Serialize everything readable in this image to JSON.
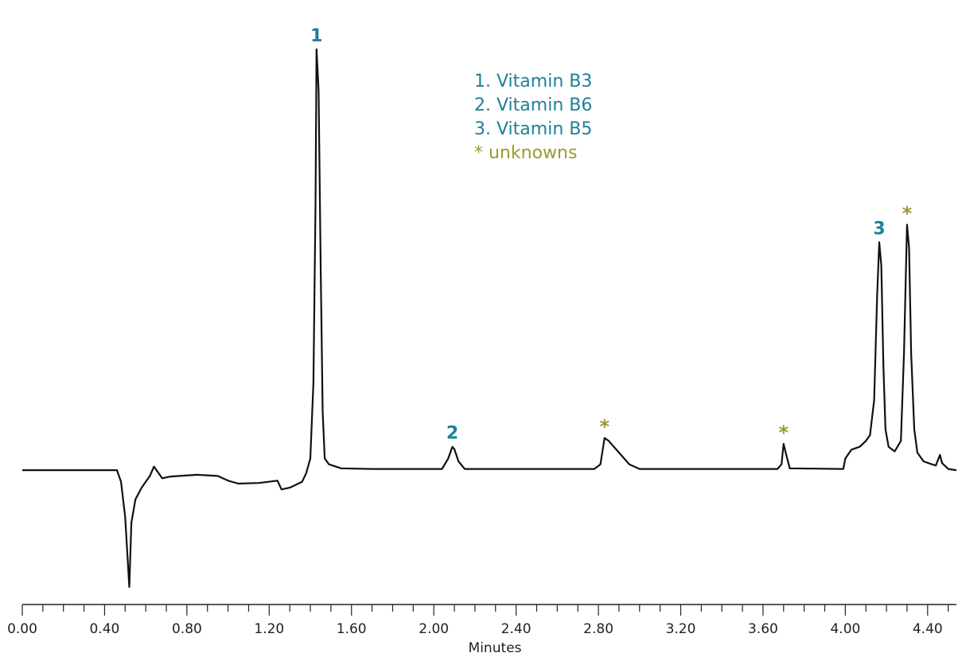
{
  "colors": {
    "teal": "#1f7f98",
    "olive": "#9a9a2e",
    "trace": "#111111"
  },
  "legend": {
    "items": [
      {
        "text": "1. Vitamin B3",
        "color": "#1f7f98"
      },
      {
        "text": "2. Vitamin B6",
        "color": "#1f7f98"
      },
      {
        "text": "3. Vitamin B5",
        "color": "#1f7f98"
      },
      {
        "text": "* unknowns",
        "color": "#9a9a2e"
      }
    ]
  },
  "chart_data": {
    "type": "line",
    "title": "",
    "xlabel": "Minutes",
    "ylabel": "",
    "xlim": [
      0.0,
      4.54
    ],
    "ylim": [
      -0.2,
      0.75
    ],
    "x_ticks": [
      "0.00",
      "0.40",
      "0.80",
      "1.20",
      "1.60",
      "2.00",
      "2.40",
      "2.80",
      "3.20",
      "3.60",
      "4.00",
      "4.40"
    ],
    "minor_tick_step": 0.1,
    "grid": false,
    "series": [
      {
        "points": [
          [
            0.0,
            0.0
          ],
          [
            0.3,
            0.0
          ],
          [
            0.46,
            0.0
          ],
          [
            0.48,
            -0.02
          ],
          [
            0.5,
            -0.08
          ],
          [
            0.51,
            -0.14
          ],
          [
            0.52,
            -0.2
          ],
          [
            0.53,
            -0.09
          ],
          [
            0.55,
            -0.05
          ],
          [
            0.58,
            -0.03
          ],
          [
            0.62,
            -0.01
          ],
          [
            0.64,
            0.006
          ],
          [
            0.66,
            -0.004
          ],
          [
            0.68,
            -0.014
          ],
          [
            0.72,
            -0.011
          ],
          [
            0.85,
            -0.008
          ],
          [
            0.95,
            -0.01
          ],
          [
            1.0,
            -0.018
          ],
          [
            1.05,
            -0.023
          ],
          [
            1.15,
            -0.022
          ],
          [
            1.24,
            -0.018
          ],
          [
            1.26,
            -0.033
          ],
          [
            1.3,
            -0.03
          ],
          [
            1.36,
            -0.02
          ],
          [
            1.38,
            -0.005
          ],
          [
            1.4,
            0.02
          ],
          [
            1.415,
            0.15
          ],
          [
            1.425,
            0.45
          ],
          [
            1.43,
            0.72
          ],
          [
            1.44,
            0.65
          ],
          [
            1.45,
            0.35
          ],
          [
            1.46,
            0.1
          ],
          [
            1.47,
            0.02
          ],
          [
            1.49,
            0.01
          ],
          [
            1.55,
            0.003
          ],
          [
            1.7,
            0.002
          ],
          [
            2.04,
            0.002
          ],
          [
            2.07,
            0.02
          ],
          [
            2.09,
            0.04
          ],
          [
            2.1,
            0.036
          ],
          [
            2.12,
            0.015
          ],
          [
            2.15,
            0.002
          ],
          [
            2.78,
            0.002
          ],
          [
            2.81,
            0.01
          ],
          [
            2.83,
            0.055
          ],
          [
            2.85,
            0.05
          ],
          [
            2.9,
            0.03
          ],
          [
            2.95,
            0.01
          ],
          [
            3.0,
            0.002
          ],
          [
            3.67,
            0.002
          ],
          [
            3.69,
            0.01
          ],
          [
            3.7,
            0.045
          ],
          [
            3.71,
            0.03
          ],
          [
            3.73,
            0.003
          ],
          [
            3.99,
            0.002
          ],
          [
            4.0,
            0.02
          ],
          [
            4.03,
            0.035
          ],
          [
            4.07,
            0.04
          ],
          [
            4.1,
            0.05
          ],
          [
            4.12,
            0.06
          ],
          [
            4.14,
            0.12
          ],
          [
            4.155,
            0.3
          ],
          [
            4.165,
            0.39
          ],
          [
            4.175,
            0.35
          ],
          [
            4.185,
            0.18
          ],
          [
            4.195,
            0.07
          ],
          [
            4.21,
            0.04
          ],
          [
            4.24,
            0.032
          ],
          [
            4.27,
            0.05
          ],
          [
            4.285,
            0.2
          ],
          [
            4.3,
            0.42
          ],
          [
            4.31,
            0.38
          ],
          [
            4.32,
            0.2
          ],
          [
            4.335,
            0.07
          ],
          [
            4.35,
            0.03
          ],
          [
            4.38,
            0.015
          ],
          [
            4.42,
            0.01
          ],
          [
            4.44,
            0.008
          ],
          [
            4.46,
            0.026
          ],
          [
            4.47,
            0.012
          ],
          [
            4.5,
            0.002
          ],
          [
            4.54,
            0.0
          ]
        ]
      }
    ],
    "peak_labels": [
      {
        "label": "1",
        "x": 1.43,
        "y": 0.72,
        "color": "#1f7f98",
        "style": "num"
      },
      {
        "label": "2",
        "x": 2.09,
        "y": 0.04,
        "color": "#1f7f98",
        "style": "num"
      },
      {
        "label": "*",
        "x": 2.83,
        "y": 0.055,
        "color": "#9a9a2e",
        "style": "star"
      },
      {
        "label": "*",
        "x": 3.7,
        "y": 0.045,
        "color": "#9a9a2e",
        "style": "star"
      },
      {
        "label": "3",
        "x": 4.165,
        "y": 0.39,
        "color": "#1f7f98",
        "style": "num"
      },
      {
        "label": "*",
        "x": 4.3,
        "y": 0.42,
        "color": "#9a9a2e",
        "style": "star"
      }
    ]
  }
}
